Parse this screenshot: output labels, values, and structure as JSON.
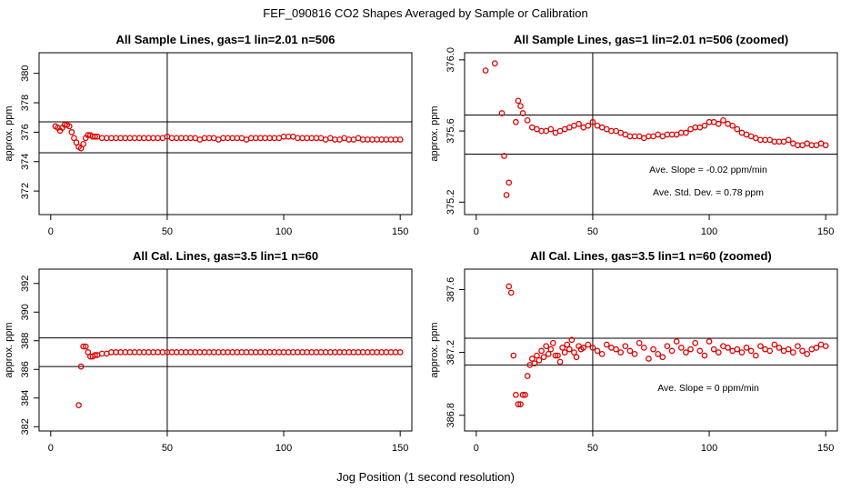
{
  "figure": {
    "suptitle": "FEF_090816  CO2 Shapes Averaged by Sample or Calibration",
    "xlabel": "Jog Position (1 second resolution)"
  },
  "chart_data": [
    {
      "type": "scatter",
      "title": "All Sample Lines, gas=1 lin=2.01 n=506",
      "ylabel": "approx. ppm",
      "xlim": [
        -5,
        155
      ],
      "ylim": [
        370.4,
        381.4
      ],
      "xticks": [
        0,
        50,
        100,
        150
      ],
      "xtick_labels": [
        "0",
        "50",
        "100",
        "150"
      ],
      "yticks": [
        372,
        374,
        376,
        378,
        380
      ],
      "ytick_labels": [
        "372",
        "374",
        "376",
        "378",
        "380"
      ],
      "vline_x": 50,
      "hlines_y": [
        376.7,
        374.6
      ],
      "annotations": [],
      "series": [
        {
          "name": "shape",
          "color": "#e00000",
          "x": [
            2,
            3,
            4,
            5,
            6,
            7,
            8,
            9,
            10,
            11,
            12,
            13,
            14,
            15,
            16,
            17,
            18,
            19,
            20,
            22,
            24,
            26,
            28,
            30,
            32,
            34,
            36,
            38,
            40,
            42,
            44,
            46,
            48,
            50,
            52,
            54,
            56,
            58,
            60,
            62,
            64,
            66,
            68,
            70,
            72,
            74,
            76,
            78,
            80,
            82,
            84,
            86,
            88,
            90,
            92,
            94,
            96,
            98,
            100,
            102,
            104,
            106,
            108,
            110,
            112,
            114,
            116,
            118,
            120,
            122,
            124,
            126,
            128,
            130,
            132,
            134,
            136,
            138,
            140,
            142,
            144,
            146,
            148,
            150
          ],
          "y": [
            376.4,
            376.3,
            376.1,
            376.3,
            376.5,
            376.5,
            376.4,
            376.0,
            375.6,
            375.3,
            375.0,
            374.9,
            375.2,
            375.6,
            375.8,
            375.8,
            375.7,
            375.7,
            375.7,
            375.6,
            375.6,
            375.6,
            375.6,
            375.6,
            375.6,
            375.6,
            375.6,
            375.6,
            375.6,
            375.6,
            375.6,
            375.6,
            375.6,
            375.7,
            375.6,
            375.6,
            375.6,
            375.6,
            375.6,
            375.6,
            375.5,
            375.6,
            375.6,
            375.6,
            375.5,
            375.6,
            375.6,
            375.6,
            375.6,
            375.6,
            375.5,
            375.6,
            375.6,
            375.6,
            375.6,
            375.6,
            375.6,
            375.6,
            375.7,
            375.7,
            375.7,
            375.6,
            375.6,
            375.6,
            375.6,
            375.6,
            375.6,
            375.5,
            375.6,
            375.5,
            375.5,
            375.6,
            375.5,
            375.5,
            375.6,
            375.5,
            375.5,
            375.5,
            375.5,
            375.5,
            375.5,
            375.5,
            375.5,
            375.5
          ]
        }
      ]
    },
    {
      "type": "scatter",
      "title": "All Sample Lines, gas=1 lin=2.01 n=506 (zoomed)",
      "ylabel": "approx. ppm",
      "xlim": [
        -5,
        155
      ],
      "ylim": [
        375.13,
        376.04
      ],
      "xticks": [
        0,
        50,
        100,
        150
      ],
      "xtick_labels": [
        "0",
        "50",
        "100",
        "150"
      ],
      "yticks": [
        375.2,
        375.6,
        376.0
      ],
      "ytick_labels": [
        "375.2",
        "375.6",
        "376.0"
      ],
      "vline_x": 50,
      "hlines_y": [
        375.69,
        375.47
      ],
      "annotations": [
        "Ave. Slope =  -0.02  ppm/min",
        "Ave. Std. Dev. =  0.78  ppm"
      ],
      "series": [
        {
          "name": "shape",
          "color": "#e00000",
          "x": [
            4,
            8,
            11,
            12,
            13,
            14,
            17,
            18,
            19,
            20,
            22,
            24,
            26,
            28,
            30,
            32,
            34,
            36,
            38,
            40,
            42,
            44,
            46,
            48,
            50,
            52,
            54,
            56,
            58,
            60,
            62,
            64,
            66,
            68,
            70,
            72,
            74,
            76,
            78,
            80,
            82,
            84,
            86,
            88,
            90,
            92,
            94,
            96,
            98,
            100,
            102,
            104,
            106,
            108,
            110,
            112,
            114,
            116,
            118,
            120,
            122,
            124,
            126,
            128,
            130,
            132,
            134,
            136,
            138,
            140,
            142,
            144,
            146,
            148,
            150
          ],
          "y": [
            375.94,
            375.98,
            375.7,
            375.46,
            375.24,
            375.31,
            375.65,
            375.77,
            375.74,
            375.7,
            375.66,
            375.62,
            375.61,
            375.6,
            375.6,
            375.61,
            375.59,
            375.6,
            375.61,
            375.62,
            375.63,
            375.64,
            375.62,
            375.63,
            375.65,
            375.63,
            375.62,
            375.61,
            375.6,
            375.6,
            375.59,
            375.58,
            375.57,
            375.57,
            375.57,
            375.56,
            375.57,
            375.57,
            375.58,
            375.57,
            375.58,
            375.58,
            375.58,
            375.59,
            375.59,
            375.61,
            375.62,
            375.62,
            375.63,
            375.65,
            375.65,
            375.64,
            375.66,
            375.64,
            375.63,
            375.61,
            375.59,
            375.58,
            375.57,
            375.56,
            375.55,
            375.55,
            375.55,
            375.54,
            375.54,
            375.54,
            375.55,
            375.53,
            375.52,
            375.52,
            375.53,
            375.52,
            375.52,
            375.53,
            375.52
          ]
        }
      ]
    },
    {
      "type": "scatter",
      "title": "All Cal. Lines, gas=3.5 lin=1 n=60",
      "ylabel": "approx. ppm",
      "xlim": [
        -5,
        155
      ],
      "ylim": [
        381.7,
        393.0
      ],
      "xticks": [
        0,
        50,
        100,
        150
      ],
      "xtick_labels": [
        "0",
        "50",
        "100",
        "150"
      ],
      "yticks": [
        382,
        384,
        386,
        388,
        390,
        392
      ],
      "ytick_labels": [
        "382",
        "384",
        "386",
        "388",
        "390",
        "392"
      ],
      "vline_x": 50,
      "hlines_y": [
        388.2,
        386.2
      ],
      "annotations": [],
      "series": [
        {
          "name": "shape",
          "color": "#e00000",
          "x": [
            12,
            13,
            14,
            15,
            16,
            17,
            18,
            19,
            20,
            22,
            24,
            26,
            28,
            30,
            32,
            34,
            36,
            38,
            40,
            42,
            44,
            46,
            48,
            50,
            52,
            54,
            56,
            58,
            60,
            62,
            64,
            66,
            68,
            70,
            72,
            74,
            76,
            78,
            80,
            82,
            84,
            86,
            88,
            90,
            92,
            94,
            96,
            98,
            100,
            102,
            104,
            106,
            108,
            110,
            112,
            114,
            116,
            118,
            120,
            122,
            124,
            126,
            128,
            130,
            132,
            134,
            136,
            138,
            140,
            142,
            144,
            146,
            148,
            150
          ],
          "y": [
            383.5,
            386.2,
            387.6,
            387.6,
            387.2,
            386.9,
            386.9,
            387.0,
            387.0,
            387.1,
            387.1,
            387.2,
            387.2,
            387.2,
            387.2,
            387.2,
            387.2,
            387.2,
            387.2,
            387.2,
            387.2,
            387.2,
            387.2,
            387.2,
            387.2,
            387.2,
            387.2,
            387.2,
            387.2,
            387.2,
            387.2,
            387.2,
            387.2,
            387.2,
            387.2,
            387.2,
            387.2,
            387.2,
            387.2,
            387.2,
            387.2,
            387.2,
            387.2,
            387.2,
            387.2,
            387.2,
            387.2,
            387.2,
            387.2,
            387.2,
            387.2,
            387.2,
            387.2,
            387.2,
            387.2,
            387.2,
            387.2,
            387.2,
            387.2,
            387.2,
            387.2,
            387.2,
            387.2,
            387.2,
            387.2,
            387.2,
            387.2,
            387.2,
            387.2,
            387.2,
            387.2,
            387.2,
            387.2,
            387.2
          ]
        }
      ]
    },
    {
      "type": "scatter",
      "title": "All Cal. Lines, gas=3.5 lin=1 n=60 (zoomed)",
      "ylabel": "approx. ppm",
      "xlim": [
        -5,
        155
      ],
      "ylim": [
        386.7,
        387.73
      ],
      "xticks": [
        0,
        50,
        100,
        150
      ],
      "xtick_labels": [
        "0",
        "50",
        "100",
        "150"
      ],
      "yticks": [
        386.8,
        387.2,
        387.6
      ],
      "ytick_labels": [
        "386.8",
        "387.2",
        "387.6"
      ],
      "vline_x": 50,
      "hlines_y": [
        387.29,
        387.12
      ],
      "annotations": [
        "Ave. Slope =  0  ppm/min"
      ],
      "series": [
        {
          "name": "shape",
          "color": "#e00000",
          "x": [
            14,
            15,
            16,
            17,
            18,
            19,
            20,
            21,
            22,
            23,
            24,
            25,
            26,
            27,
            28,
            29,
            30,
            31,
            32,
            33,
            34,
            35,
            36,
            37,
            38,
            39,
            40,
            41,
            42,
            43,
            44,
            45,
            46,
            48,
            50,
            52,
            54,
            56,
            58,
            60,
            62,
            64,
            66,
            68,
            70,
            72,
            74,
            76,
            78,
            80,
            82,
            84,
            86,
            88,
            90,
            92,
            94,
            96,
            98,
            100,
            102,
            104,
            106,
            108,
            110,
            112,
            114,
            116,
            118,
            120,
            122,
            124,
            126,
            128,
            130,
            132,
            134,
            136,
            138,
            140,
            142,
            144,
            146,
            148,
            150
          ],
          "y": [
            387.62,
            387.58,
            387.18,
            386.93,
            386.87,
            386.87,
            386.93,
            386.93,
            387.05,
            387.12,
            387.16,
            387.13,
            387.18,
            387.15,
            387.21,
            387.17,
            387.24,
            387.19,
            387.22,
            387.26,
            387.18,
            387.18,
            387.14,
            387.23,
            387.2,
            387.25,
            387.22,
            387.28,
            387.2,
            387.17,
            387.24,
            387.22,
            387.23,
            387.25,
            387.23,
            387.21,
            387.19,
            387.25,
            387.23,
            387.22,
            387.2,
            387.24,
            387.21,
            387.19,
            387.26,
            387.23,
            387.16,
            387.22,
            387.19,
            387.17,
            387.24,
            387.21,
            387.27,
            387.23,
            387.2,
            387.22,
            387.26,
            387.21,
            387.18,
            387.27,
            387.22,
            387.2,
            387.24,
            387.23,
            387.21,
            387.22,
            387.2,
            387.23,
            387.21,
            387.18,
            387.24,
            387.22,
            387.21,
            387.25,
            387.23,
            387.21,
            387.22,
            387.2,
            387.24,
            387.21,
            387.19,
            387.22,
            387.23,
            387.25,
            387.24
          ]
        }
      ]
    }
  ]
}
